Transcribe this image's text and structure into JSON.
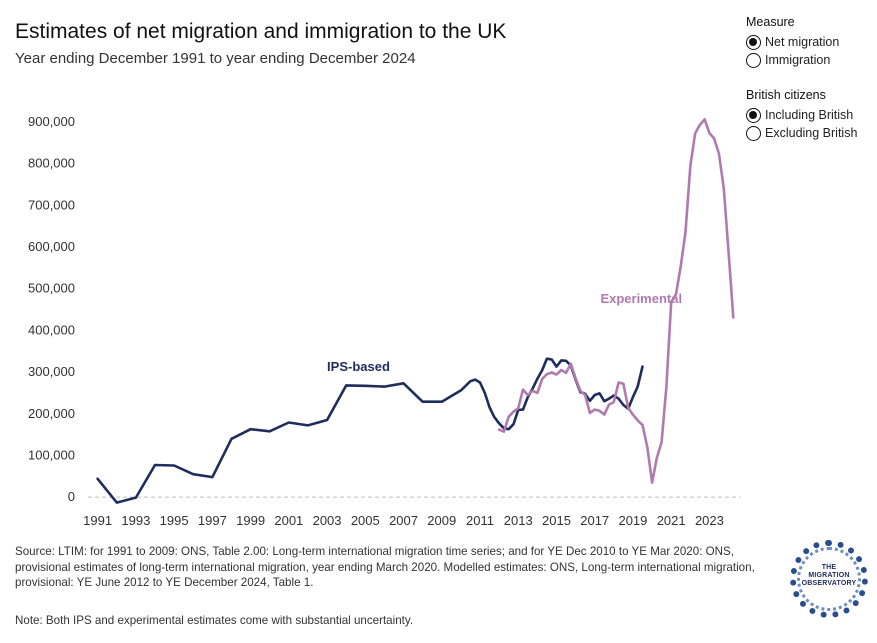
{
  "title": "Estimates of net migration and immigration to the UK",
  "subtitle": "Year ending December 1991 to year ending December 2024",
  "controls": {
    "measure": {
      "heading": "Measure",
      "options": [
        {
          "label": "Net migration",
          "selected": true
        },
        {
          "label": "Immigration",
          "selected": false
        }
      ]
    },
    "british": {
      "heading": "British citizens",
      "options": [
        {
          "label": "Including British",
          "selected": true
        },
        {
          "label": "Excluding British",
          "selected": false
        }
      ]
    }
  },
  "chart_data": {
    "type": "line",
    "title": "Estimates of net migration and immigration to the UK",
    "xlabel": "",
    "ylabel": "",
    "xlim": [
      1990.6,
      2024.6
    ],
    "ylim": [
      -50000,
      950000
    ],
    "x_ticks": [
      1991,
      1993,
      1995,
      1997,
      1999,
      2001,
      2003,
      2005,
      2007,
      2009,
      2011,
      2013,
      2015,
      2017,
      2019,
      2021,
      2023
    ],
    "y_ticks": [
      0,
      100000,
      200000,
      300000,
      400000,
      500000,
      600000,
      700000,
      800000,
      900000
    ],
    "y_tick_labels": [
      "0",
      "100,000",
      "200,000",
      "300,000",
      "400,000",
      "500,000",
      "600,000",
      "700,000",
      "800,000",
      "900,000"
    ],
    "zero_line": "dashed",
    "series": [
      {
        "name": "IPS-based",
        "color": "#1f2d5c",
        "points": [
          [
            1991,
            44000
          ],
          [
            1992,
            -13000
          ],
          [
            1993,
            -1000
          ],
          [
            1994,
            77000
          ],
          [
            1995,
            76000
          ],
          [
            1996,
            55000
          ],
          [
            1997,
            48000
          ],
          [
            1998,
            140000
          ],
          [
            1999,
            163000
          ],
          [
            2000,
            158000
          ],
          [
            2001,
            179000
          ],
          [
            2002,
            172000
          ],
          [
            2003,
            185000
          ],
          [
            2004,
            268000
          ],
          [
            2005,
            267000
          ],
          [
            2006,
            265000
          ],
          [
            2007,
            273000
          ],
          [
            2008,
            229000
          ],
          [
            2009,
            229000
          ],
          [
            2010,
            256000
          ],
          [
            2010.5,
            278000
          ],
          [
            2010.75,
            282000
          ],
          [
            2011,
            275000
          ],
          [
            2011.25,
            250000
          ],
          [
            2011.5,
            215000
          ],
          [
            2011.75,
            192000
          ],
          [
            2012,
            177000
          ],
          [
            2012.25,
            165000
          ],
          [
            2012.5,
            163000
          ],
          [
            2012.75,
            175000
          ],
          [
            2013,
            209000
          ],
          [
            2013.25,
            210000
          ],
          [
            2013.5,
            240000
          ],
          [
            2013.75,
            260000
          ],
          [
            2014,
            284000
          ],
          [
            2014.25,
            304000
          ],
          [
            2014.5,
            332000
          ],
          [
            2014.75,
            330000
          ],
          [
            2015,
            313000
          ],
          [
            2015.25,
            328000
          ],
          [
            2015.5,
            327000
          ],
          [
            2015.75,
            316000
          ],
          [
            2016,
            282000
          ],
          [
            2016.25,
            252000
          ],
          [
            2016.5,
            248000
          ],
          [
            2016.75,
            231000
          ],
          [
            2017,
            245000
          ],
          [
            2017.25,
            249000
          ],
          [
            2017.5,
            230000
          ],
          [
            2017.75,
            236000
          ],
          [
            2018,
            244000
          ],
          [
            2018.25,
            236000
          ],
          [
            2018.5,
            221000
          ],
          [
            2018.75,
            212000
          ],
          [
            2019,
            240000
          ],
          [
            2019.25,
            265000
          ],
          [
            2019.5,
            313000
          ]
        ]
      },
      {
        "name": "Experimental",
        "color": "#b07aae",
        "points": [
          [
            2012,
            162000
          ],
          [
            2012.25,
            157000
          ],
          [
            2012.5,
            193000
          ],
          [
            2012.75,
            205000
          ],
          [
            2013,
            213000
          ],
          [
            2013.25,
            258000
          ],
          [
            2013.5,
            245000
          ],
          [
            2013.75,
            255000
          ],
          [
            2014,
            250000
          ],
          [
            2014.25,
            283000
          ],
          [
            2014.5,
            295000
          ],
          [
            2014.75,
            299000
          ],
          [
            2015,
            294000
          ],
          [
            2015.25,
            305000
          ],
          [
            2015.5,
            298000
          ],
          [
            2015.75,
            320000
          ],
          [
            2016,
            285000
          ],
          [
            2016.25,
            255000
          ],
          [
            2016.5,
            245000
          ],
          [
            2016.75,
            202000
          ],
          [
            2017,
            210000
          ],
          [
            2017.25,
            207000
          ],
          [
            2017.5,
            198000
          ],
          [
            2017.75,
            222000
          ],
          [
            2018,
            228000
          ],
          [
            2018.25,
            275000
          ],
          [
            2018.5,
            272000
          ],
          [
            2018.75,
            214000
          ],
          [
            2019,
            198000
          ],
          [
            2019.25,
            184000
          ],
          [
            2019.5,
            173000
          ],
          [
            2019.75,
            120000
          ],
          [
            2020,
            35000
          ],
          [
            2020.25,
            94000
          ],
          [
            2020.5,
            132000
          ],
          [
            2020.75,
            265000
          ],
          [
            2021,
            468000
          ],
          [
            2021.25,
            487000
          ],
          [
            2021.5,
            553000
          ],
          [
            2021.75,
            636000
          ],
          [
            2022,
            793000
          ],
          [
            2022.25,
            872000
          ],
          [
            2022.5,
            893000
          ],
          [
            2022.75,
            906000
          ],
          [
            2023,
            873000
          ],
          [
            2023.25,
            860000
          ],
          [
            2023.5,
            823000
          ],
          [
            2023.75,
            740000
          ],
          [
            2024,
            590000
          ],
          [
            2024.25,
            431000
          ]
        ]
      }
    ],
    "annotations": [
      {
        "text": "IPS-based",
        "x": 2003.0,
        "y": 302000,
        "series": "IPS-based"
      },
      {
        "text": "Experimental",
        "x": 2017.3,
        "y": 465000,
        "series": "Experimental"
      }
    ]
  },
  "source_text": "Source: LTIM: for 1991 to 2009: ONS, Table 2.00: Long-term international migration time series; and for YE Dec 2010 to YE Mar 2020: ONS, provisional estimates of long-term international migration, year ending March 2020. Modelled estimates: ONS, Long-term international migration, provisional: YE June 2012 to YE December 2024, Table 1.",
  "note_text": "Note: Both IPS and experimental estimates come with substantial uncertainty.",
  "logo": {
    "line1": "THE",
    "line2": "MIGRATION",
    "line3": "OBSERVATORY"
  }
}
